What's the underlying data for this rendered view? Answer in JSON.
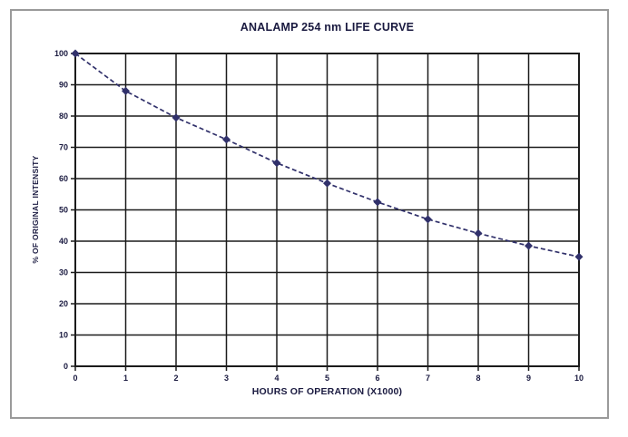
{
  "frame": {
    "border_color": "#9a9a9a",
    "background": "#ffffff"
  },
  "chart_data": {
    "type": "line",
    "title": "ANALAMP 254 nm LIFE CURVE",
    "xlabel": "HOURS OF OPERATION (X1000)",
    "ylabel": "% OF ORIGINAL INTENSITY",
    "x": [
      0,
      1,
      2,
      3,
      4,
      5,
      6,
      7,
      8,
      9,
      10
    ],
    "values": [
      100,
      88,
      79.5,
      72.5,
      65,
      58.5,
      52.5,
      47,
      42.5,
      38.5,
      35
    ],
    "xlim": [
      0,
      10
    ],
    "ylim": [
      0,
      100
    ],
    "x_ticks": [
      0,
      1,
      2,
      3,
      4,
      5,
      6,
      7,
      8,
      9,
      10
    ],
    "y_ticks": [
      0,
      10,
      20,
      30,
      40,
      50,
      60,
      70,
      80,
      90,
      100
    ],
    "grid": true,
    "legend_position": "none",
    "line_color": "#31316b",
    "line_style": "dashed",
    "marker": "diamond",
    "grid_color": "#1b1b1b",
    "text_color": "#1a1a40"
  }
}
